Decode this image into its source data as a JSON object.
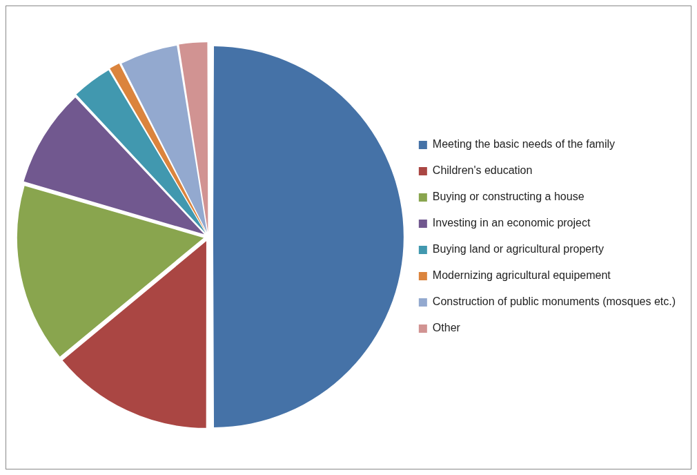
{
  "chart_data": {
    "type": "pie",
    "categories": [
      "Meeting the basic needs of the family",
      "Children's education",
      "Buying or constructing a house",
      "Investing in an economic project",
      "Buying land or agricultural property",
      "Modernizing agricultural equipement",
      "Construction of public monuments (mosques etc.)",
      "Other"
    ],
    "values": [
      50,
      14,
      15.5,
      8.5,
      3.5,
      1,
      5,
      2.5
    ],
    "colors": [
      "#4572a7",
      "#aa4643",
      "#89a54e",
      "#71588f",
      "#4198af",
      "#db843d",
      "#93a9cf",
      "#d19392"
    ],
    "legend": "right"
  }
}
